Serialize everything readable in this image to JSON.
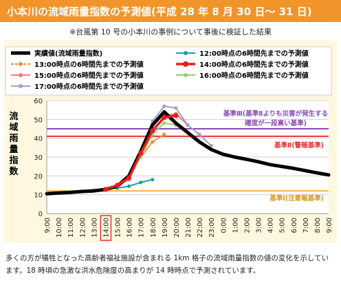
{
  "header": {
    "title": "小本川の流域雨量指数の予測値(平成 28 年 8 月 30 日～ 31 日)",
    "note": "※台風第 10 号の小本川の事例について事後に検証した結果"
  },
  "footer": {
    "caption": "多くの方が犠牲となった高齢者福祉施設が含まれる 1km 格子の流域雨量指数の値の変化を示しています。18 時頃の急激な洪水危険度の高まりが 14 時時点で予測されています。"
  },
  "colors": {
    "title_bar": "#f1952a",
    "panel_bg": "#fff7df",
    "level3": "#8a4ab8",
    "level2": "#e23434",
    "level1": "#f3b63c"
  },
  "chart_data": {
    "type": "line",
    "title": "",
    "xlabel": "",
    "ylabel": "流域雨量指数",
    "ylim": [
      0,
      60
    ],
    "yticks": [
      0,
      10,
      20,
      30,
      40,
      50,
      60
    ],
    "grid": "horizontal",
    "legend_position": "top",
    "categories": [
      "9:00",
      "10:00",
      "11:00",
      "12:00",
      "13:00",
      "14:00",
      "15:00",
      "16:00",
      "17:00",
      "18:00",
      "19:00",
      "20:00",
      "21:00",
      "22:00",
      "23:00",
      "0:00",
      "1:00",
      "2:00",
      "3:00",
      "4:00",
      "5:00",
      "6:00",
      "7:00",
      "8:00",
      "9:00"
    ],
    "highlight_category": "14:00",
    "thresholds": [
      {
        "name": "基準Ⅲ(基準Ⅱよりも災害が発生する確度が一段高い基準)",
        "value": 45,
        "color": "#8a4ab8"
      },
      {
        "name": "基準Ⅱ(警報基準)",
        "value": 41,
        "color": "#e23434"
      },
      {
        "name": "基準Ⅰ(注意報基準)",
        "value": 12,
        "color": "#f3b63c"
      }
    ],
    "series": [
      {
        "name": "実績値(流域雨量指数)",
        "color": "#000000",
        "marker": "none",
        "x": [
          0,
          1,
          2,
          3,
          4,
          5,
          6,
          7,
          8,
          9,
          10,
          11,
          12,
          13,
          14,
          15,
          16,
          17,
          18,
          19,
          20,
          21,
          22,
          23,
          24
        ],
        "y": [
          10.5,
          10.9,
          11.2,
          11.7,
          12.0,
          12.8,
          14.5,
          20,
          33,
          47,
          54,
          48,
          43,
          38,
          34,
          31.5,
          30,
          28.8,
          27.5,
          26,
          25,
          24,
          22.8,
          21.6,
          20.5
        ]
      },
      {
        "name": "12:00時点の6時間先までの予測値",
        "color": "#1aa0b0",
        "marker": "circle",
        "x": [
          3,
          4,
          5,
          6,
          7,
          8,
          9
        ],
        "y": [
          11.7,
          12.3,
          13.0,
          13.5,
          14.5,
          16.5,
          18.0
        ]
      },
      {
        "name": "13:00時点の6時間先までの予測値",
        "color": "#f08c3c",
        "marker": "circle",
        "x": [
          4,
          5,
          6,
          7,
          8,
          9,
          10
        ],
        "y": [
          12.0,
          12.8,
          14.2,
          20,
          30,
          38,
          42
        ]
      },
      {
        "name": "14:00時点の6時間先までの予測値",
        "color": "#e61e1e",
        "marker": "circle",
        "x": [
          5,
          6,
          7,
          8,
          9,
          10,
          11
        ],
        "y": [
          12.8,
          15.0,
          19.0,
          32,
          44,
          51,
          52
        ]
      },
      {
        "name": "15:00時点の6時間先までの予測値",
        "color": "#f27b76",
        "marker": "circle",
        "x": [
          6,
          7,
          8,
          9,
          10,
          11,
          12
        ],
        "y": [
          14.5,
          18.0,
          31,
          43,
          52,
          53,
          47
        ]
      },
      {
        "name": "16:00時点の6時間先までの予測値",
        "color": "#9ccc6c",
        "marker": "circle",
        "x": [
          7,
          8,
          9,
          10,
          11,
          12,
          13
        ],
        "y": [
          20,
          30,
          42,
          48,
          47,
          43,
          38
        ]
      },
      {
        "name": "17:00時点の6時間先までの予測値",
        "color": "#a79bc8",
        "marker": "circle",
        "x": [
          8,
          9,
          10,
          11,
          12,
          13,
          14
        ],
        "y": [
          33,
          49,
          57,
          56,
          47,
          42,
          36
        ]
      }
    ]
  }
}
